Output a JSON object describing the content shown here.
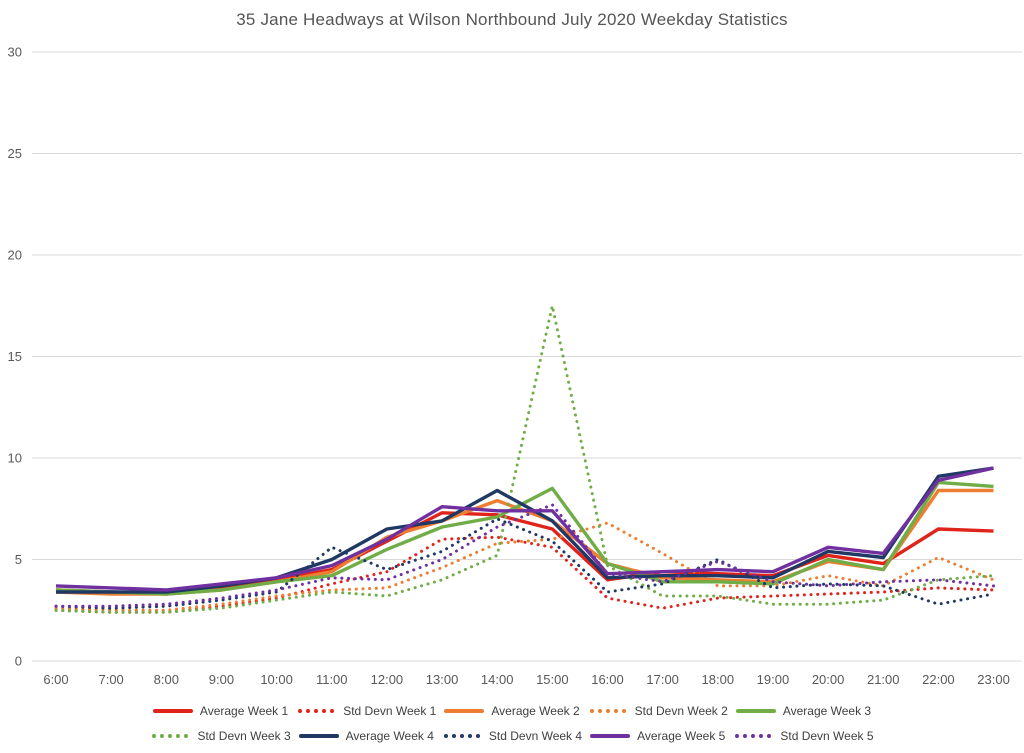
{
  "title": "35 Jane Headways at Wilson Northbound July 2020 Weekday Statistics",
  "colors": {
    "week1": "#E0241B",
    "week2": "#ED7D31",
    "week3": "#70AD47",
    "week4": "#1F3864",
    "week5": "#7030A0",
    "gridline": "#D9D9D9",
    "axis_text": "#595959",
    "title_text": "#555555",
    "legend_text": "#404040",
    "background": "#FFFFFF"
  },
  "chart_data": {
    "type": "line",
    "title": "35 Jane Headways at Wilson Northbound July 2020 Weekday Statistics",
    "xlabel": "",
    "ylabel": "",
    "grid": "horizontal",
    "legend_position": "bottom",
    "categories": [
      "6:00",
      "7:00",
      "8:00",
      "9:00",
      "10:00",
      "11:00",
      "12:00",
      "13:00",
      "14:00",
      "15:00",
      "16:00",
      "17:00",
      "18:00",
      "19:00",
      "20:00",
      "21:00",
      "22:00",
      "23:00"
    ],
    "y_axis": {
      "min": 0,
      "max": 30,
      "tick_interval": 5,
      "ticks": [
        0,
        5,
        10,
        15,
        20,
        25,
        30
      ]
    },
    "series": [
      {
        "name": "Average Week 1",
        "style": "solid",
        "color": "#E0241B",
        "values": [
          3.5,
          3.4,
          3.3,
          3.6,
          4.0,
          4.5,
          5.9,
          7.3,
          7.2,
          6.5,
          4.0,
          4.4,
          4.3,
          4.2,
          5.2,
          4.8,
          6.5,
          6.4
        ]
      },
      {
        "name": "Std Devn Week 1",
        "style": "dotted",
        "color": "#E0241B",
        "values": [
          2.5,
          2.4,
          2.4,
          2.7,
          3.1,
          3.8,
          4.4,
          6.0,
          6.1,
          5.6,
          3.1,
          2.6,
          3.1,
          3.2,
          3.3,
          3.4,
          3.6,
          3.5
        ]
      },
      {
        "name": "Average Week 2",
        "style": "solid",
        "color": "#ED7D31",
        "values": [
          3.4,
          3.3,
          3.3,
          3.5,
          3.9,
          4.4,
          6.1,
          6.9,
          7.9,
          6.9,
          4.8,
          4.1,
          4.0,
          3.9,
          4.9,
          4.5,
          8.4,
          8.4
        ]
      },
      {
        "name": "Std Devn Week 2",
        "style": "dotted",
        "color": "#ED7D31",
        "values": [
          2.6,
          2.5,
          2.5,
          2.8,
          3.2,
          3.5,
          3.6,
          4.6,
          5.8,
          6.0,
          6.8,
          5.3,
          3.7,
          3.7,
          4.2,
          3.7,
          5.1,
          4.0
        ]
      },
      {
        "name": "Average Week 3",
        "style": "solid",
        "color": "#70AD47",
        "values": [
          3.5,
          3.4,
          3.3,
          3.5,
          3.9,
          4.2,
          5.5,
          6.6,
          7.1,
          8.5,
          4.8,
          3.9,
          3.9,
          3.8,
          5.0,
          4.5,
          8.8,
          8.6
        ]
      },
      {
        "name": "Std Devn Week 3",
        "style": "dotted",
        "color": "#70AD47",
        "values": [
          2.5,
          2.4,
          2.4,
          2.6,
          3.0,
          3.4,
          3.2,
          4.0,
          5.2,
          17.5,
          4.7,
          3.2,
          3.2,
          2.8,
          2.8,
          3.0,
          4.0,
          4.2
        ]
      },
      {
        "name": "Average Week 4",
        "style": "solid",
        "color": "#1F3864",
        "values": [
          3.4,
          3.4,
          3.4,
          3.7,
          4.1,
          5.0,
          6.5,
          6.9,
          8.4,
          6.9,
          4.1,
          4.2,
          4.2,
          4.1,
          5.4,
          5.1,
          9.1,
          9.5
        ]
      },
      {
        "name": "Std Devn Week 4",
        "style": "dotted",
        "color": "#1F3864",
        "values": [
          2.7,
          2.6,
          2.7,
          3.0,
          3.4,
          5.6,
          4.5,
          5.4,
          7.0,
          5.9,
          3.4,
          3.8,
          5.0,
          3.6,
          3.8,
          3.7,
          2.8,
          3.3
        ]
      },
      {
        "name": "Average Week 5",
        "style": "solid",
        "color": "#7030A0",
        "values": [
          3.7,
          3.6,
          3.5,
          3.8,
          4.1,
          4.7,
          6.0,
          7.6,
          7.4,
          7.4,
          4.3,
          4.4,
          4.5,
          4.4,
          5.6,
          5.3,
          8.9,
          9.5
        ]
      },
      {
        "name": "Std Devn Week 5",
        "style": "dotted",
        "color": "#7030A0",
        "values": [
          2.7,
          2.7,
          2.8,
          3.1,
          3.5,
          4.1,
          4.0,
          5.0,
          6.6,
          7.7,
          4.3,
          3.9,
          4.9,
          3.9,
          3.7,
          3.9,
          4.0,
          3.7
        ]
      }
    ]
  }
}
